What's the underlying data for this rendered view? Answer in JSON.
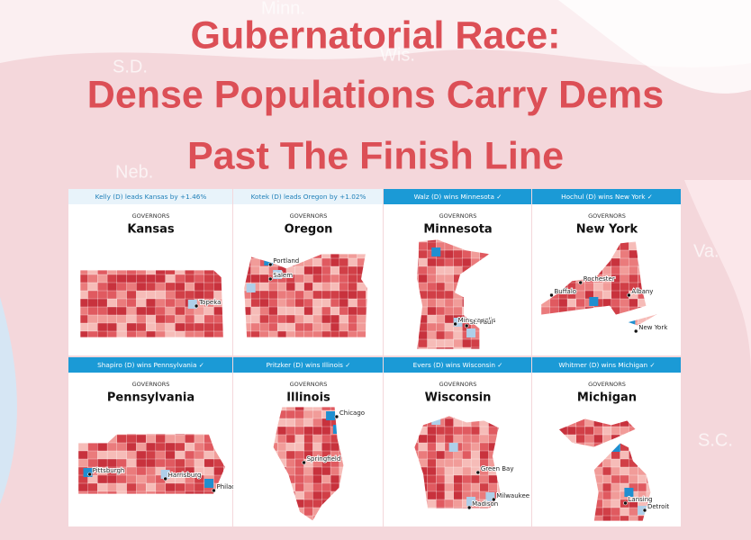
{
  "title": {
    "lines": [
      "Gubernatorial Race:",
      "Dense Populations Carry Dems",
      "Past The Finish Line"
    ]
  },
  "background_labels": [
    "Minn.",
    "S.D.",
    "Wis.",
    "Neb.",
    "Va.",
    "S.C."
  ],
  "panels": [
    {
      "header": "Kelly (D) leads Kansas by +1.46%",
      "label": "GOVERNORS",
      "state": "Kansas",
      "cities": [
        "Topeka"
      ]
    },
    {
      "header": "Kotek (D) leads Oregon by +1.02%",
      "label": "GOVERNORS",
      "state": "Oregon",
      "cities": [
        "Portland",
        "Salem"
      ]
    },
    {
      "header": "Walz (D) wins Minnesota ✓",
      "label": "GOVERNORS",
      "state": "Minnesota",
      "cities": [
        "Minneapolis",
        "St. Paul"
      ]
    },
    {
      "header": "Hochul (D) wins New York ✓",
      "label": "GOVERNORS",
      "state": "New York",
      "cities": [
        "Buffalo",
        "Rochester",
        "Albany",
        "New York"
      ]
    },
    {
      "header": "Shapiro (D) wins Pennsylvania ✓",
      "label": "GOVERNORS",
      "state": "Pennsylvania",
      "cities": [
        "Pittsburgh",
        "Harrisburg",
        "Philadelphia"
      ]
    },
    {
      "header": "Pritzker (D) wins Illinois ✓",
      "label": "GOVERNORS",
      "state": "Illinois",
      "cities": [
        "Chicago",
        "Springfield"
      ]
    },
    {
      "header": "Evers (D) wins Wisconsin ✓",
      "label": "GOVERNORS",
      "state": "Wisconsin",
      "cities": [
        "Green Bay",
        "Milwaukee",
        "Madison"
      ]
    },
    {
      "header": "Whitmer (D) wins Michigan ✓",
      "label": "GOVERNORS",
      "state": "Michigan",
      "cities": [
        "Lansing",
        "Detroit"
      ]
    }
  ]
}
